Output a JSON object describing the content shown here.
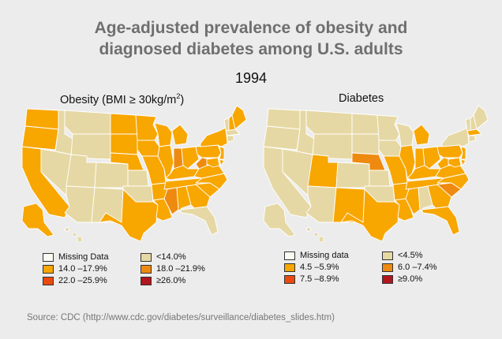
{
  "title_line1": "Age-adjusted prevalence of obesity and",
  "title_line2": "diagnosed diabetes among U.S. adults",
  "year": "1994",
  "obesity": {
    "title": "Obesity (BMI ≥ 30kg/m",
    "title_sup": "2",
    "title_end": ")",
    "legend": [
      {
        "label": "Missing Data",
        "color": "#fbfbf2"
      },
      {
        "label": "<14.0%",
        "color": "#e6d8a4"
      },
      {
        "label": "14.0 –17.9%",
        "color": "#f8a600"
      },
      {
        "label": "18.0 –21.9%",
        "color": "#ee8a10"
      },
      {
        "label": "22.0 –25.9%",
        "color": "#ea4a0f"
      },
      {
        "label": "≥26.0%",
        "color": "#b0161c"
      }
    ]
  },
  "diabetes": {
    "title": "Diabetes",
    "legend": [
      {
        "label": "Missing data",
        "color": "#fbfbf2"
      },
      {
        "label": "<4.5%",
        "color": "#e6d8a4"
      },
      {
        "label": "4.5 –5.9%",
        "color": "#f8a600"
      },
      {
        "label": "6.0 –7.4%",
        "color": "#ee8a10"
      },
      {
        "label": "7.5 –8.9%",
        "color": "#ea4a0f"
      },
      {
        "label": "≥9.0%",
        "color": "#b0161c"
      }
    ]
  },
  "states": {
    "WA": {
      "o": 1,
      "d": 0
    },
    "OR": {
      "o": 1,
      "d": 0
    },
    "CA": {
      "o": 1,
      "d": 0
    },
    "ID": {
      "o": 0,
      "d": 0
    },
    "NV": {
      "o": 0,
      "d": 0
    },
    "MT": {
      "o": 0,
      "d": 0
    },
    "WY": {
      "o": 0,
      "d": 0
    },
    "UT": {
      "o": 0,
      "d": 1
    },
    "CO": {
      "o": 0,
      "d": 0
    },
    "AZ": {
      "o": 0,
      "d": 0
    },
    "NM": {
      "o": 0,
      "d": 1
    },
    "ND": {
      "o": 1,
      "d": 0
    },
    "SD": {
      "o": 1,
      "d": 0
    },
    "NE": {
      "o": 1,
      "d": 2
    },
    "KS": {
      "o": 0,
      "d": 0
    },
    "OK": {
      "o": 0,
      "d": 0
    },
    "TX": {
      "o": 1,
      "d": 1
    },
    "MN": {
      "o": 1,
      "d": 0
    },
    "IA": {
      "o": 1,
      "d": 0
    },
    "MO": {
      "o": 1,
      "d": 1
    },
    "AR": {
      "o": 1,
      "d": 1
    },
    "LA": {
      "o": 1,
      "d": 1
    },
    "WI": {
      "o": 1,
      "d": 0
    },
    "IL": {
      "o": 1,
      "d": 1
    },
    "MI": {
      "o": 1,
      "d": 1
    },
    "IN": {
      "o": 2,
      "d": 1
    },
    "OH": {
      "o": 1,
      "d": 1
    },
    "KY": {
      "o": 1,
      "d": 1
    },
    "TN": {
      "o": 1,
      "d": 1
    },
    "MS": {
      "o": 2,
      "d": 1
    },
    "AL": {
      "o": 1,
      "d": 0
    },
    "GA": {
      "o": 1,
      "d": 1
    },
    "FL": {
      "o": 0,
      "d": 1
    },
    "SC": {
      "o": 1,
      "d": 2
    },
    "NC": {
      "o": 1,
      "d": 1
    },
    "VA": {
      "o": 1,
      "d": 1
    },
    "WV": {
      "o": 2,
      "d": 1
    },
    "PA": {
      "o": 1,
      "d": 1
    },
    "NY": {
      "o": 1,
      "d": 0
    },
    "VT": {
      "o": 0,
      "d": 0
    },
    "NH": {
      "o": 1,
      "d": 0
    },
    "ME": {
      "o": 1,
      "d": 0
    },
    "MA": {
      "o": 0,
      "d": 1
    },
    "CT": {
      "o": 0,
      "d": 0
    },
    "NJ": {
      "o": 1,
      "d": 1
    },
    "MD": {
      "o": 1,
      "d": 1
    },
    "DE": {
      "o": 1,
      "d": 1
    },
    "AK": {
      "o": 1,
      "d": 0
    },
    "HI": {
      "o": 0,
      "d": 0
    }
  },
  "source": "Source: CDC (http://www.cdc.gov/diabetes/surveillance/diabetes_slides.htm)"
}
